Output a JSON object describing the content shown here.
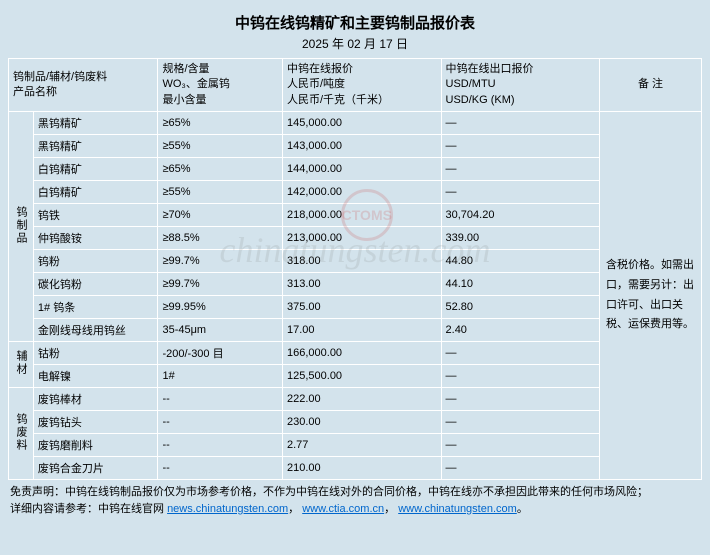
{
  "title": "中钨在线钨精矿和主要钨制品报价表",
  "date": "2025 年 02 月 17 日",
  "columns": {
    "c1": "钨制品/辅材/钨废料\n产品名称",
    "c2": "规格/含量\nWO₃、金属钨\n最小含量",
    "c3": "中钨在线报价\n人民币/吨度\n人民币/千克（千米）",
    "c4": "中钨在线出口报价\nUSD/MTU\nUSD/KG (KM)",
    "c5": "备 注"
  },
  "groups": [
    {
      "cat": "钨制品",
      "rows": [
        {
          "name": "黑钨精矿",
          "spec": "≥65%",
          "rmb": "145,000.00",
          "usd": "—"
        },
        {
          "name": "黑钨精矿",
          "spec": "≥55%",
          "rmb": "143,000.00",
          "usd": "—"
        },
        {
          "name": "白钨精矿",
          "spec": "≥65%",
          "rmb": "144,000.00",
          "usd": "—"
        },
        {
          "name": "白钨精矿",
          "spec": "≥55%",
          "rmb": "142,000.00",
          "usd": "—"
        },
        {
          "name": "钨铁",
          "spec": "≥70%",
          "rmb": "218,000.00",
          "usd": "30,704.20"
        },
        {
          "name": "仲钨酸铵",
          "spec": "≥88.5%",
          "rmb": "213,000.00",
          "usd": "339.00"
        },
        {
          "name": "钨粉",
          "spec": "≥99.7%",
          "rmb": "318.00",
          "usd": "44.80"
        },
        {
          "name": "碳化钨粉",
          "spec": "≥99.7%",
          "rmb": "313.00",
          "usd": "44.10"
        },
        {
          "name": "1# 钨条",
          "spec": "≥99.95%",
          "rmb": "375.00",
          "usd": "52.80"
        },
        {
          "name": "金刚线母线用钨丝",
          "spec": "35-45μm",
          "rmb": "17.00",
          "usd": "2.40"
        }
      ]
    },
    {
      "cat": "辅材",
      "rows": [
        {
          "name": "钴粉",
          "spec": "-200/-300 目",
          "rmb": "166,000.00",
          "usd": "—"
        },
        {
          "name": "电解镍",
          "spec": "1#",
          "rmb": "125,500.00",
          "usd": "—"
        }
      ]
    },
    {
      "cat": "钨废料",
      "rows": [
        {
          "name": "废钨棒材",
          "spec": "--",
          "rmb": "222.00",
          "usd": "—"
        },
        {
          "name": "废钨钻头",
          "spec": "--",
          "rmb": "230.00",
          "usd": "—"
        },
        {
          "name": "废钨磨削料",
          "spec": "--",
          "rmb": "2.77",
          "usd": "—"
        },
        {
          "name": "废钨合金刀片",
          "spec": "--",
          "rmb": "210.00",
          "usd": "—"
        }
      ]
    }
  ],
  "note": "含税价格。如需出口，需要另计：出口许可、出口关税、运保费用等。",
  "disclaimer": {
    "line1": "免责声明：中钨在线钨制品报价仅为市场参考价格，不作为中钨在线对外的合同价格，中钨在线亦不承担因此带来的任何市场风险；",
    "line2_prefix": "详细内容请参考：中钨在线官网 ",
    "link1": "news.chinatungsten.com",
    "sep": "，",
    "link2": "www.ctia.com.cn",
    "link3": "www.chinatungsten.com",
    "suffix": "。"
  },
  "watermark": "chinatungsten.com",
  "wm_logo": "CTOMS",
  "colors": {
    "bg": "#d3e3ec",
    "border": "#ffffff",
    "link": "#0066cc"
  }
}
